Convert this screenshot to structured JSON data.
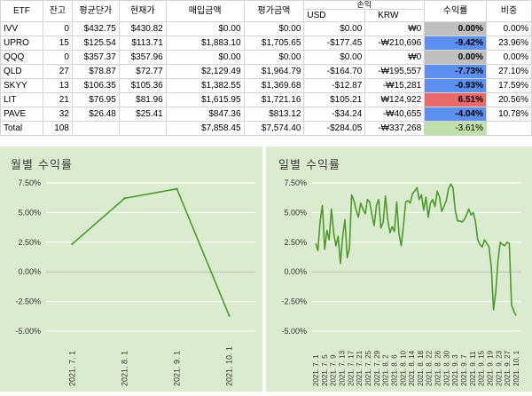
{
  "table": {
    "headers": {
      "etf": "ETF",
      "qty": "잔고",
      "avg_price": "평균단가",
      "cur_price": "현재가",
      "buy_amount": "매입금액",
      "eval_amount": "평가금액",
      "pnl": "손익",
      "usd": "USD",
      "krw": "KRW",
      "rate": "수익률",
      "weight": "비중"
    },
    "rows": [
      {
        "etf": "IVV",
        "qty": "0",
        "avg": "$432.75",
        "cur": "$430.82",
        "buy": "$0.00",
        "eval": "$0.00",
        "usd": "$0.00",
        "krw": "₩0",
        "rate": "0.00%",
        "rate_class": "rate-zero",
        "weight": "0.00%"
      },
      {
        "etf": "UPRO",
        "qty": "15",
        "avg": "$125.54",
        "cur": "$113.71",
        "buy": "$1,883.10",
        "eval": "$1,705.65",
        "usd": "-$177.45",
        "krw": "-₩210,696",
        "rate": "-9.42%",
        "rate_class": "rate-neg",
        "weight": "23.96%"
      },
      {
        "etf": "QQQ",
        "qty": "0",
        "avg": "$357.37",
        "cur": "$357.96",
        "buy": "$0.00",
        "eval": "$0.00",
        "usd": "$0.00",
        "krw": "₩0",
        "rate": "0.00%",
        "rate_class": "rate-zero",
        "weight": "0.00%"
      },
      {
        "etf": "QLD",
        "qty": "27",
        "avg": "$78.87",
        "cur": "$72.77",
        "buy": "$2,129.49",
        "eval": "$1,964.79",
        "usd": "-$164.70",
        "krw": "-₩195,557",
        "rate": "-7.73%",
        "rate_class": "rate-neg",
        "weight": "27.10%"
      },
      {
        "etf": "SKYY",
        "qty": "13",
        "avg": "$106.35",
        "cur": "$105.36",
        "buy": "$1,382.55",
        "eval": "$1,369.68",
        "usd": "-$12.87",
        "krw": "-₩15,281",
        "rate": "-0.93%",
        "rate_class": "rate-neg",
        "weight": "17.59%"
      },
      {
        "etf": "LIT",
        "qty": "21",
        "avg": "$76.95",
        "cur": "$81.96",
        "buy": "$1,615.95",
        "eval": "$1,721.16",
        "usd": "$105.21",
        "krw": "₩124,922",
        "rate": "6.51%",
        "rate_class": "rate-pos",
        "weight": "20.56%"
      },
      {
        "etf": "PAVE",
        "qty": "32",
        "avg": "$26.48",
        "cur": "$25.41",
        "buy": "$847.36",
        "eval": "$813.12",
        "usd": "-$34.24",
        "krw": "-₩40,655",
        "rate": "-4.04%",
        "rate_class": "rate-neg",
        "weight": "10.78%"
      }
    ],
    "total": {
      "label": "Total",
      "qty": "108",
      "buy": "$7,858.45",
      "eval": "$7,574.40",
      "usd": "-$284.05",
      "krw": "-₩337,268",
      "rate": "-3.61%"
    }
  },
  "colors": {
    "chart_bg": "#dbebcf",
    "line": "#4c9a2a",
    "grid": "#ffffff",
    "rate_negative": "#5b8ff0",
    "rate_zero": "#bfbfbf",
    "rate_positive": "#ea6a6a",
    "rate_total": "#bfe0a8"
  },
  "chart_data": [
    {
      "type": "line",
      "title": "월별 수익률",
      "x": [
        "2021. 7. 1",
        "2021. 8. 1",
        "2021. 9. 1",
        "2021. 10. 1"
      ],
      "values": [
        2.35,
        6.2,
        7.0,
        -3.7
      ],
      "yticks": [
        "7.50%",
        "5.00%",
        "2.50%",
        "0.00%",
        "-2.50%",
        "-5.00%"
      ],
      "ylim": [
        -5,
        7.5
      ],
      "grid": true
    },
    {
      "type": "line",
      "title": "일별 수익률",
      "xticks": [
        "2021. 7. 1",
        "2021. 7. 5",
        "2021. 7. 9",
        "2021. 7. 13",
        "2021. 7. 17",
        "2021. 7. 21",
        "2021. 7. 25",
        "2021. 7. 29",
        "2021. 8. 2",
        "2021. 8. 6",
        "2021. 8. 10",
        "2021. 8. 14",
        "2021. 8. 18",
        "2021. 8. 22",
        "2021. 8. 26",
        "2021. 8. 30",
        "2021. 9. 3",
        "2021. 9. 7",
        "2021. 9. 11",
        "2021. 9. 15",
        "2021. 9. 19",
        "2021. 9. 23",
        "2021. 9. 27",
        "2021. 10. 1"
      ],
      "values": [
        2.4,
        1.8,
        4.3,
        5.6,
        1.9,
        3.5,
        2.7,
        5.3,
        3.3,
        2.2,
        3.0,
        0.7,
        3.0,
        4.4,
        1.2,
        2.0,
        6.5,
        6.0,
        5.2,
        4.6,
        5.8,
        5.3,
        4.9,
        6.1,
        5.9,
        4.8,
        3.9,
        5.6,
        6.1,
        3.7,
        4.2,
        6.4,
        4.4,
        3.3,
        3.8,
        3.4,
        5.9,
        3.2,
        2.2,
        3.9,
        5.9,
        6.0,
        5.8,
        6.6,
        6.8,
        7.1,
        6.1,
        6.5,
        5.2,
        6.3,
        4.6,
        5.8,
        6.1,
        5.5,
        6.8,
        6.3,
        5.1,
        5.5,
        6.0,
        7.0,
        7.4,
        7.1,
        5.2,
        4.3,
        4.3,
        4.2,
        4.4,
        4.8,
        5.3,
        4.8,
        5.0,
        4.2,
        2.7,
        2.3,
        2.1,
        2.7,
        2.4,
        2.1,
        0.4,
        -3.2,
        -1.7,
        1.0,
        2.5,
        2.3,
        2.2,
        2.5,
        2.4,
        -2.8,
        -3.3,
        -3.7
      ],
      "yticks": [
        "7.50%",
        "5.00%",
        "2.50%",
        "0.00%",
        "-2.50%",
        "-5.00%"
      ],
      "ylim": [
        -5,
        7.5
      ],
      "grid": true
    }
  ]
}
